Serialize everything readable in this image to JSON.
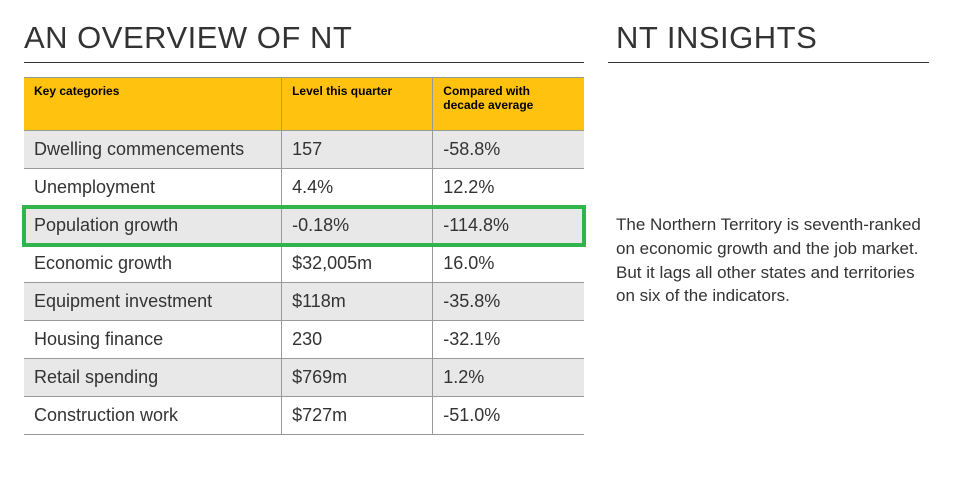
{
  "left": {
    "heading": "AN OVERVIEW OF NT",
    "table": {
      "columns": [
        "Key categories",
        "Level this quarter",
        "Compared with decade average"
      ],
      "column_widths": [
        "46%",
        "27%",
        "27%"
      ],
      "header_bg": "#ffc20e",
      "header_fontsize": 12,
      "body_fontsize": 18,
      "alt_row_bg": "#e8e8e8",
      "border_color": "#999999",
      "highlight_row_index": 2,
      "highlight_color": "#2fb54b",
      "rows": [
        {
          "category": "Dwelling commencements",
          "level": "157",
          "compared": "-58.8%"
        },
        {
          "category": "Unemployment",
          "level": "4.4%",
          "compared": "12.2%"
        },
        {
          "category": "Population growth",
          "level": "-0.18%",
          "compared": "-114.8%"
        },
        {
          "category": "Economic growth",
          "level": "$32,005m",
          "compared": "16.0%"
        },
        {
          "category": "Equipment investment",
          "level": "$118m",
          "compared": "-35.8%"
        },
        {
          "category": "Housing finance",
          "level": "230",
          "compared": "-32.1%"
        },
        {
          "category": "Retail spending",
          "level": "$769m",
          "compared": "1.2%"
        },
        {
          "category": "Construction work",
          "level": "$727m",
          "compared": "-51.0%"
        }
      ]
    }
  },
  "right": {
    "heading": "NT INSIGHTS",
    "text": "The Northern Territory is seventh-ranked on economic growth and the job market. But it lags all other states and territories on six of the indicators."
  }
}
